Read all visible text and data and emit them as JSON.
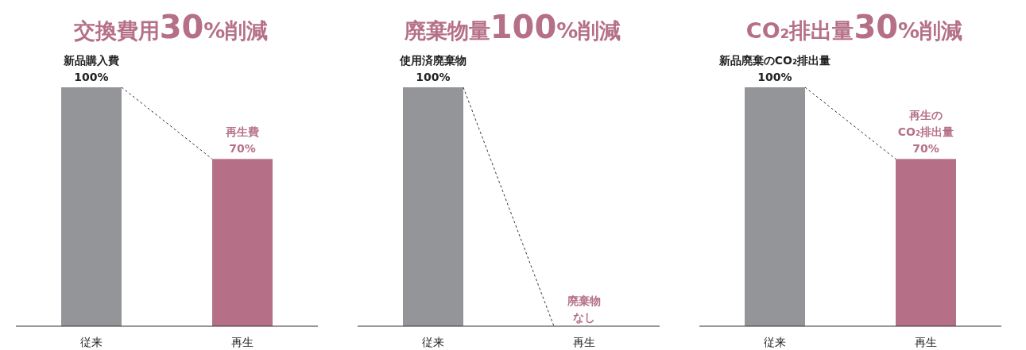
{
  "chart_data": [
    {
      "type": "bar",
      "title": "交換費用30%削減",
      "categories": [
        "従来",
        "再生"
      ],
      "values": [
        100,
        70
      ],
      "colors": [
        "#939598",
        "#b57088"
      ],
      "value_labels": [
        "新品購入費\n100%",
        "再生費\n70%"
      ]
    },
    {
      "type": "bar",
      "title": "廃棄物量100%削減",
      "categories": [
        "従来",
        "再生"
      ],
      "values": [
        100,
        0
      ],
      "colors": [
        "#939598",
        "#b57088"
      ],
      "value_labels": [
        "使用済廃棄物\n100%",
        "廃棄物なし"
      ]
    },
    {
      "type": "bar",
      "title": "CO₂排出量30%削減",
      "categories": [
        "従来",
        "再生"
      ],
      "values": [
        100,
        70
      ],
      "colors": [
        "#939598",
        "#b57088"
      ],
      "value_labels": [
        "新品廃棄のCO₂排出量\n100%",
        "再生の\nCO₂排出量\n70%"
      ]
    }
  ]
}
